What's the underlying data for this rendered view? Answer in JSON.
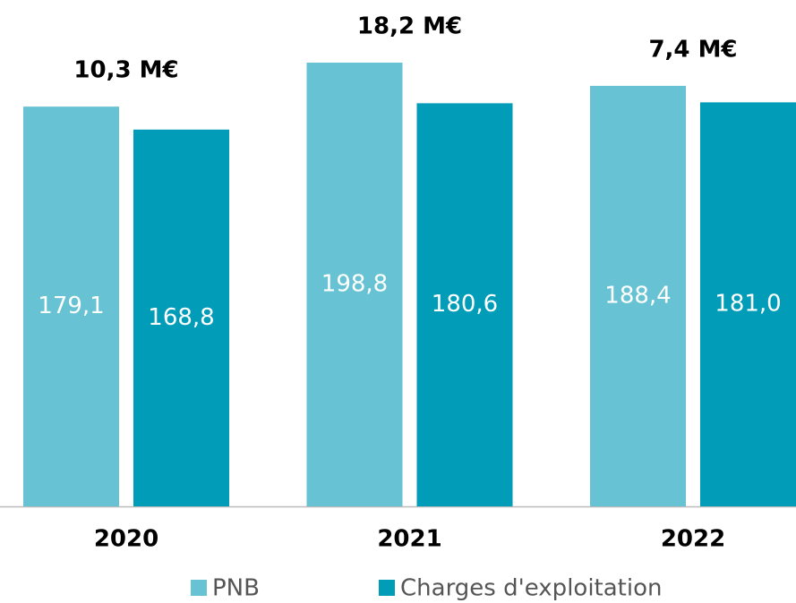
{
  "chart_data": {
    "type": "bar",
    "categories": [
      "2020",
      "2021",
      "2022"
    ],
    "annotations": [
      "10,3 M€",
      "18,2 M€",
      "7,4 M€"
    ],
    "series": [
      {
        "name": "PNB",
        "color": "#67c3d4",
        "values": [
          179.1,
          198.8,
          188.4
        ],
        "value_labels": [
          "179,1",
          "198,8",
          "188,4"
        ]
      },
      {
        "name": "Charges d'exploitation",
        "color": "#009cb8",
        "values": [
          168.8,
          180.6,
          181.0
        ],
        "value_labels": [
          "168,8",
          "180,6",
          "181,0"
        ]
      }
    ],
    "legend": "bottom"
  }
}
